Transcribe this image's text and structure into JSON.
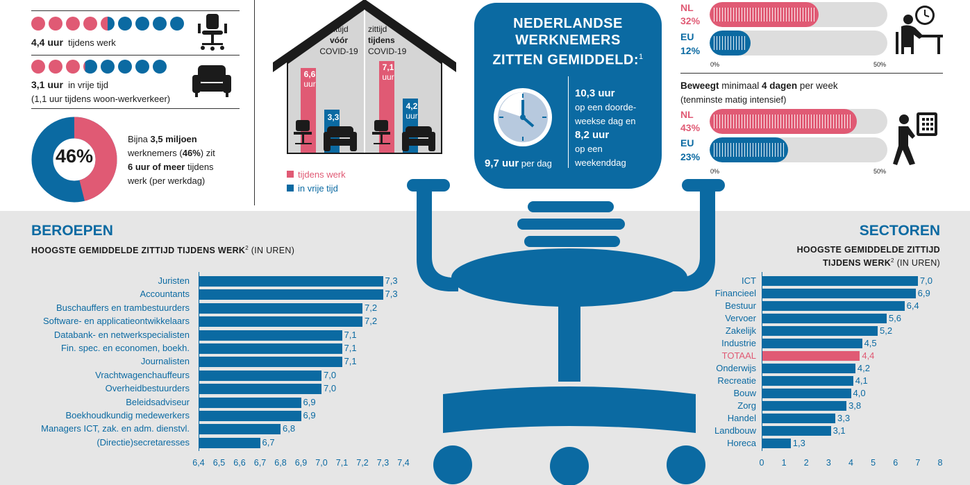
{
  "left": {
    "work_hours": "4,4 uur",
    "work_label": "tijdens werk",
    "free_hours": "3,1 uur",
    "free_label": "in vrije tijd",
    "commute_note": "(1,1 uur tijdens woon-werkverkeer)",
    "donut_value": "46%",
    "donut_fraction": 0.46,
    "donut_text": {
      "p1": "Bijna ",
      "b1": "3,5 miljoen",
      "p2": "werknemers (",
      "b2": "46%",
      "p3": ") zit",
      "b3": "6 uur of meer",
      "p4": " tijdens",
      "p5": "werk (per werkdag)"
    }
  },
  "house": {
    "before_l1": "zittijd",
    "before_l2": "vóór",
    "before_l3": "COVID-19",
    "during_l1": "zittijd",
    "during_l2": "tijdens",
    "during_l3": "COVID-19",
    "bar1_val": "6,6",
    "bar1_unit": "uur",
    "bar2_val": "3,3",
    "bar3_val": "7,1",
    "bar3_unit": "uur",
    "bar4_val": "4,2",
    "bar4_unit": "uur",
    "legend_work": "tijdens werk",
    "legend_free": "in vrije tijd"
  },
  "center": {
    "title_l1": "NEDERLANDSE",
    "title_l2": "WERKNEMERS",
    "title_l3": "ZITTEN GEMIDDELD:",
    "title_sup": "1",
    "total": "9,7 uur",
    "total_suffix": " per dag",
    "weekday_hours": "10,3 uur",
    "weekday_l1": "op een doorde-",
    "weekday_l2": "weekse dag en",
    "weekend_hours": "8,2 uur",
    "weekend_l1": "op een",
    "weekend_l2": "weekenddag"
  },
  "right": {
    "nl_label": "NL",
    "eu_label": "EU",
    "sit": {
      "nl_pct": "32%",
      "eu_pct": "12%",
      "nl_value": 32,
      "eu_value": 12
    },
    "move_title_b1": "Beweegt",
    "move_title_p1": " minimaal ",
    "move_title_b2": "4 dagen",
    "move_title_p2": " per week",
    "move_subtitle": "(tenminste matig intensief)",
    "move": {
      "nl_pct": "43%",
      "eu_pct": "23%",
      "nl_value": 43,
      "eu_value": 23
    },
    "axis_0": "0%",
    "axis_50": "50%"
  },
  "beroepen": {
    "title": "BEROEPEN",
    "subtitle_bold": "HOOGSTE GEMIDDELDE ZITTIJD TIJDENS WERK",
    "subtitle_sup": "2",
    "subtitle_rest": " (IN UREN)"
  },
  "sectoren": {
    "title": "SECTOREN",
    "subtitle_l1": "HOOGSTE GEMIDDELDE ZITTIJD",
    "subtitle_bold2": "TIJDENS WERK",
    "subtitle_sup": "2",
    "subtitle_rest": " (IN UREN)"
  },
  "chart_data": [
    {
      "type": "bar",
      "orientation": "horizontal",
      "categories": [
        "Juristen",
        "Accountants",
        "Buschauffers en trambestuurders",
        "Software- en applicatieontwikkelaars",
        "Databank- en netwerkspecialisten",
        "Fin. spec. en economen, boekh.",
        "Journalisten",
        "Vrachtwagenchauffeurs",
        "Overheidbestuurders",
        "Beleidsadviseur",
        "Boekhoudkundig medewerkers",
        "Managers ICT, zak. en adm. dienstvl.",
        "(Directie)secretaresses"
      ],
      "values": [
        7.3,
        7.3,
        7.2,
        7.2,
        7.1,
        7.1,
        7.1,
        7.0,
        7.0,
        6.9,
        6.9,
        6.8,
        6.7
      ],
      "value_labels": [
        "7,3",
        "7,3",
        "7,2",
        "7,2",
        "7,1",
        "7,1",
        "7,1",
        "7,0",
        "7,0",
        "6,9",
        "6,9",
        "6,8",
        "6,7"
      ],
      "xlim": [
        6.4,
        7.4
      ],
      "xticks": [
        "6,4",
        "6,5",
        "6,6",
        "6,7",
        "6,8",
        "6,9",
        "7,0",
        "7,1",
        "7,2",
        "7,3",
        "7,4"
      ],
      "color": "#0b6aa2"
    },
    {
      "type": "bar",
      "orientation": "horizontal",
      "categories": [
        "ICT",
        "Financieel",
        "Bestuur",
        "Vervoer",
        "Zakelijk",
        "Industrie",
        "TOTAAL",
        "Onderwijs",
        "Recreatie",
        "Bouw",
        "Zorg",
        "Handel",
        "Landbouw",
        "Horeca"
      ],
      "values": [
        7.0,
        6.9,
        6.4,
        5.6,
        5.2,
        4.5,
        4.4,
        4.2,
        4.1,
        4.0,
        3.8,
        3.3,
        3.1,
        1.3
      ],
      "value_labels": [
        "7,0",
        "6,9",
        "6,4",
        "5,6",
        "5,2",
        "4,5",
        "4,4",
        "4,2",
        "4,1",
        "4,0",
        "3,8",
        "3,3",
        "3,1",
        "1,3"
      ],
      "highlight": "TOTAAL",
      "xlim": [
        0,
        8
      ],
      "xticks": [
        "0",
        "1",
        "2",
        "3",
        "4",
        "5",
        "6",
        "7",
        "8"
      ],
      "color": "#0b6aa2",
      "highlight_color": "#e05a74"
    }
  ],
  "colors": {
    "blue": "#0b6aa2",
    "pink": "#e05a74",
    "grey_band": "#e6e6e6"
  }
}
